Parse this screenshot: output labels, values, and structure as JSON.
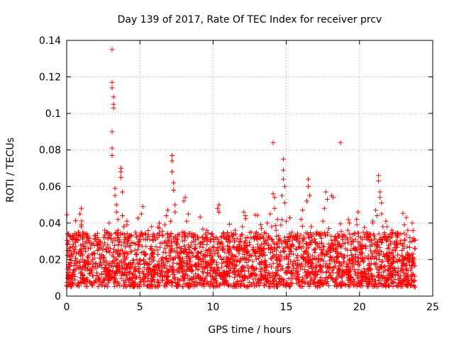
{
  "chart_data": {
    "type": "scatter",
    "title": "Day 139 of 2017, Rate Of TEC Index for receiver prcv",
    "xlabel": "GPS time / hours",
    "ylabel": "ROTI / TECUs",
    "xlim": [
      0,
      25
    ],
    "ylim": [
      0,
      0.14
    ],
    "xticks": [
      0,
      5,
      10,
      15,
      20,
      25
    ],
    "xtick_labels": [
      "0",
      "5",
      "10",
      "15",
      "20",
      "25"
    ],
    "yticks": [
      0,
      0.02,
      0.04,
      0.06,
      0.08,
      0.1,
      0.12,
      0.14
    ],
    "ytick_labels": [
      "0",
      "0.02",
      "0.04",
      "0.06",
      "0.08",
      "0.1",
      "0.12",
      "0.14"
    ],
    "grid": true,
    "marker": "plus",
    "series": [
      {
        "name": "ROTI",
        "color": "#ff0000",
        "points": [
          [
            0.1,
            0.013
          ],
          [
            0.2,
            0.022
          ],
          [
            0.3,
            0.018
          ],
          [
            0.4,
            0.027
          ],
          [
            0.5,
            0.012
          ],
          [
            0.6,
            0.031
          ],
          [
            0.7,
            0.019
          ],
          [
            0.8,
            0.024
          ],
          [
            0.9,
            0.045
          ],
          [
            1.0,
            0.048
          ],
          [
            1.0,
            0.038
          ],
          [
            1.1,
            0.016
          ],
          [
            1.2,
            0.026
          ],
          [
            1.3,
            0.009
          ],
          [
            1.4,
            0.034
          ],
          [
            1.5,
            0.021
          ],
          [
            1.6,
            0.014
          ],
          [
            1.7,
            0.028
          ],
          [
            1.8,
            0.011
          ],
          [
            1.9,
            0.033
          ],
          [
            2.0,
            0.018
          ],
          [
            2.1,
            0.025
          ],
          [
            2.2,
            0.009
          ],
          [
            2.3,
            0.03
          ],
          [
            2.4,
            0.017
          ],
          [
            2.5,
            0.022
          ],
          [
            2.6,
            0.036
          ],
          [
            2.7,
            0.014
          ],
          [
            2.8,
            0.028
          ],
          [
            2.9,
            0.04
          ],
          [
            3.1,
            0.135
          ],
          [
            3.1,
            0.117
          ],
          [
            3.1,
            0.114
          ],
          [
            3.2,
            0.109
          ],
          [
            3.2,
            0.105
          ],
          [
            3.2,
            0.103
          ],
          [
            3.1,
            0.09
          ],
          [
            3.1,
            0.081
          ],
          [
            3.1,
            0.077
          ],
          [
            3.3,
            0.059
          ],
          [
            3.3,
            0.055
          ],
          [
            3.4,
            0.05
          ],
          [
            3.4,
            0.046
          ],
          [
            3.5,
            0.042
          ],
          [
            3.5,
            0.036
          ],
          [
            3.6,
            0.03
          ],
          [
            3.7,
            0.07
          ],
          [
            3.7,
            0.068
          ],
          [
            3.7,
            0.065
          ],
          [
            3.8,
            0.057
          ],
          [
            3.8,
            0.044
          ],
          [
            3.9,
            0.038
          ],
          [
            4.0,
            0.027
          ],
          [
            4.1,
            0.021
          ],
          [
            4.2,
            0.017
          ],
          [
            4.3,
            0.033
          ],
          [
            4.4,
            0.024
          ],
          [
            4.5,
            0.012
          ],
          [
            4.6,
            0.029
          ],
          [
            4.7,
            0.035
          ],
          [
            4.8,
            0.02
          ],
          [
            4.9,
            0.015
          ],
          [
            5.0,
            0.028
          ],
          [
            5.1,
            0.045
          ],
          [
            5.2,
            0.049
          ],
          [
            5.3,
            0.023
          ],
          [
            5.4,
            0.018
          ],
          [
            5.5,
            0.031
          ],
          [
            5.6,
            0.013
          ],
          [
            5.7,
            0.026
          ],
          [
            5.8,
            0.038
          ],
          [
            5.9,
            0.021
          ],
          [
            6.0,
            0.016
          ],
          [
            6.1,
            0.027
          ],
          [
            6.2,
            0.034
          ],
          [
            6.3,
            0.019
          ],
          [
            6.4,
            0.012
          ],
          [
            6.5,
            0.029
          ],
          [
            6.6,
            0.024
          ],
          [
            6.7,
            0.039
          ],
          [
            6.8,
            0.044
          ],
          [
            6.9,
            0.047
          ],
          [
            7.0,
            0.033
          ],
          [
            7.1,
            0.041
          ],
          [
            7.2,
            0.077
          ],
          [
            7.2,
            0.074
          ],
          [
            7.2,
            0.068
          ],
          [
            7.3,
            0.062
          ],
          [
            7.3,
            0.058
          ],
          [
            7.4,
            0.05
          ],
          [
            7.4,
            0.046
          ],
          [
            7.5,
            0.031
          ],
          [
            7.6,
            0.022
          ],
          [
            7.7,
            0.018
          ],
          [
            7.8,
            0.026
          ],
          [
            7.9,
            0.035
          ],
          [
            8.0,
            0.052
          ],
          [
            8.1,
            0.054
          ],
          [
            8.2,
            0.041
          ],
          [
            8.3,
            0.028
          ],
          [
            8.4,
            0.019
          ],
          [
            8.5,
            0.024
          ],
          [
            8.6,
            0.014
          ],
          [
            8.7,
            0.03
          ],
          [
            8.8,
            0.017
          ],
          [
            8.9,
            0.022
          ],
          [
            9.0,
            0.011
          ],
          [
            9.1,
            0.027
          ],
          [
            9.2,
            0.016
          ],
          [
            9.3,
            0.02
          ],
          [
            9.4,
            0.008
          ],
          [
            9.5,
            0.025
          ],
          [
            9.6,
            0.013
          ],
          [
            9.7,
            0.018
          ],
          [
            9.8,
            0.006
          ],
          [
            9.9,
            0.021
          ],
          [
            10.0,
            0.01
          ],
          [
            10.1,
            0.015
          ],
          [
            10.2,
            0.032
          ],
          [
            10.3,
            0.048
          ],
          [
            10.4,
            0.05
          ],
          [
            10.4,
            0.046
          ],
          [
            10.5,
            0.029
          ],
          [
            10.6,
            0.018
          ],
          [
            10.7,
            0.013
          ],
          [
            10.8,
            0.024
          ],
          [
            10.9,
            0.031
          ],
          [
            11.0,
            0.019
          ],
          [
            11.1,
            0.027
          ],
          [
            11.2,
            0.014
          ],
          [
            11.3,
            0.033
          ],
          [
            11.4,
            0.022
          ],
          [
            11.5,
            0.036
          ],
          [
            11.6,
            0.017
          ],
          [
            11.7,
            0.026
          ],
          [
            11.8,
            0.011
          ],
          [
            11.9,
            0.03
          ],
          [
            12.0,
            0.038
          ],
          [
            12.1,
            0.046
          ],
          [
            12.2,
            0.044
          ],
          [
            12.3,
            0.021
          ],
          [
            12.4,
            0.015
          ],
          [
            12.5,
            0.028
          ],
          [
            12.6,
            0.035
          ],
          [
            12.7,
            0.019
          ],
          [
            12.8,
            0.024
          ],
          [
            12.9,
            0.012
          ],
          [
            13.0,
            0.031
          ],
          [
            13.1,
            0.026
          ],
          [
            13.2,
            0.018
          ],
          [
            13.3,
            0.037
          ],
          [
            13.4,
            0.022
          ],
          [
            13.5,
            0.014
          ],
          [
            13.6,
            0.029
          ],
          [
            13.7,
            0.04
          ],
          [
            13.8,
            0.033
          ],
          [
            13.9,
            0.045
          ],
          [
            14.0,
            0.038
          ],
          [
            14.1,
            0.084
          ],
          [
            14.1,
            0.056
          ],
          [
            14.2,
            0.054
          ],
          [
            14.2,
            0.048
          ],
          [
            14.3,
            0.036
          ],
          [
            14.4,
            0.042
          ],
          [
            14.5,
            0.03
          ],
          [
            14.6,
            0.024
          ],
          [
            14.7,
            0.055
          ],
          [
            14.8,
            0.075
          ],
          [
            14.8,
            0.069
          ],
          [
            14.8,
            0.064
          ],
          [
            14.9,
            0.06
          ],
          [
            14.9,
            0.051
          ],
          [
            15.0,
            0.041
          ],
          [
            15.1,
            0.032
          ],
          [
            15.2,
            0.026
          ],
          [
            15.3,
            0.019
          ],
          [
            15.4,
            0.028
          ],
          [
            15.5,
            0.015
          ],
          [
            15.6,
            0.033
          ],
          [
            15.7,
            0.021
          ],
          [
            15.8,
            0.012
          ],
          [
            15.9,
            0.027
          ],
          [
            16.0,
            0.042
          ],
          [
            16.1,
            0.047
          ],
          [
            16.2,
            0.031
          ],
          [
            16.3,
            0.024
          ],
          [
            16.4,
            0.052
          ],
          [
            16.5,
            0.064
          ],
          [
            16.5,
            0.06
          ],
          [
            16.6,
            0.055
          ],
          [
            16.7,
            0.038
          ],
          [
            16.8,
            0.018
          ],
          [
            16.9,
            0.009
          ],
          [
            17.0,
            0.026
          ],
          [
            17.1,
            0.035
          ],
          [
            17.2,
            0.022
          ],
          [
            17.3,
            0.014
          ],
          [
            17.4,
            0.029
          ],
          [
            17.5,
            0.041
          ],
          [
            17.6,
            0.048
          ],
          [
            17.7,
            0.057
          ],
          [
            17.8,
            0.053
          ],
          [
            17.9,
            0.037
          ],
          [
            18.0,
            0.024
          ],
          [
            18.1,
            0.055
          ],
          [
            18.2,
            0.054
          ],
          [
            18.3,
            0.031
          ],
          [
            18.4,
            0.019
          ],
          [
            18.5,
            0.027
          ],
          [
            18.6,
            0.012
          ],
          [
            18.7,
            0.084
          ],
          [
            18.8,
            0.033
          ],
          [
            18.9,
            0.021
          ],
          [
            19.0,
            0.029
          ],
          [
            19.1,
            0.016
          ],
          [
            19.2,
            0.036
          ],
          [
            19.3,
            0.04
          ],
          [
            19.4,
            0.025
          ],
          [
            19.5,
            0.018
          ],
          [
            19.6,
            0.03
          ],
          [
            19.7,
            0.012
          ],
          [
            19.8,
            0.042
          ],
          [
            19.9,
            0.046
          ],
          [
            20.0,
            0.024
          ],
          [
            20.1,
            0.019
          ],
          [
            20.2,
            0.031
          ],
          [
            20.3,
            0.015
          ],
          [
            20.4,
            0.027
          ],
          [
            20.5,
            0.035
          ],
          [
            20.6,
            0.022
          ],
          [
            20.7,
            0.017
          ],
          [
            20.8,
            0.028
          ],
          [
            20.9,
            0.04
          ],
          [
            21.0,
            0.033
          ],
          [
            21.1,
            0.047
          ],
          [
            21.2,
            0.044
          ],
          [
            21.3,
            0.066
          ],
          [
            21.3,
            0.063
          ],
          [
            21.4,
            0.057
          ],
          [
            21.4,
            0.054
          ],
          [
            21.5,
            0.051
          ],
          [
            21.5,
            0.045
          ],
          [
            21.6,
            0.038
          ],
          [
            21.7,
            0.034
          ],
          [
            21.8,
            0.041
          ],
          [
            21.9,
            0.026
          ],
          [
            22.0,
            0.019
          ],
          [
            22.1,
            0.03
          ],
          [
            22.2,
            0.036
          ],
          [
            22.3,
            0.022
          ],
          [
            22.4,
            0.015
          ],
          [
            22.5,
            0.028
          ],
          [
            22.6,
            0.033
          ],
          [
            22.7,
            0.02
          ],
          [
            22.8,
            0.011
          ],
          [
            22.9,
            0.025
          ],
          [
            23.0,
            0.017
          ],
          [
            23.1,
            0.031
          ],
          [
            23.2,
            0.043
          ],
          [
            23.3,
            0.036
          ],
          [
            23.4,
            0.022
          ],
          [
            23.5,
            0.014
          ],
          [
            23.6,
            0.04
          ],
          [
            23.6,
            0.03
          ],
          [
            23.7,
            0.018
          ],
          [
            23.7,
            0.008
          ],
          [
            23.8,
            0.005
          ],
          [
            23.8,
            0.026
          ]
        ]
      }
    ]
  }
}
